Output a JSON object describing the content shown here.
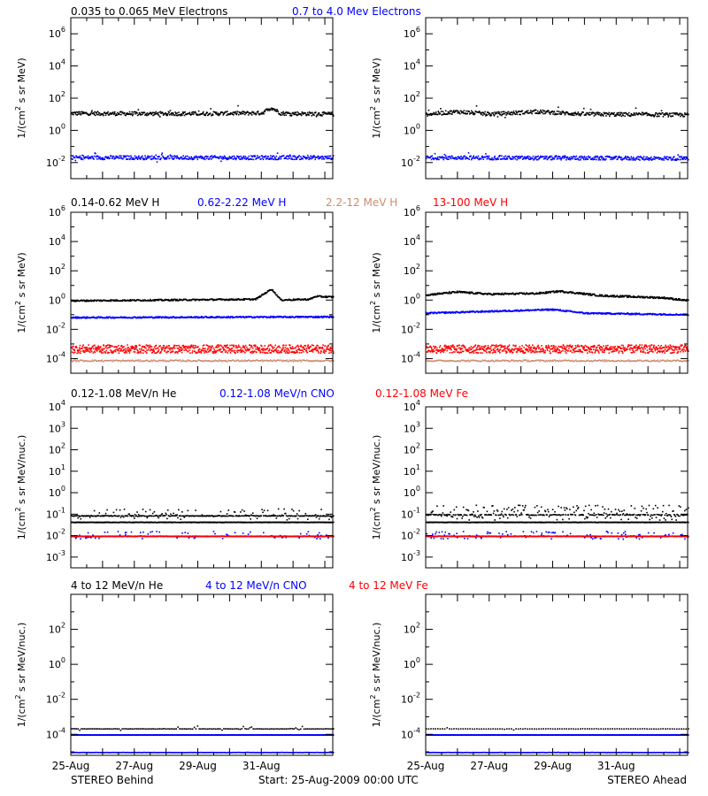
{
  "footer": {
    "left_label": "STEREO Behind",
    "center_label": "Start: 25-Aug-2009 00:00 UTC",
    "right_label": "STEREO Ahead"
  },
  "x_ticks": [
    "25-Aug",
    "27-Aug",
    "29-Aug",
    "31-Aug"
  ],
  "chart_data": [
    {
      "id": "electrons",
      "type": "scatter",
      "header": [
        {
          "text": "0.035 to 0.065 MeV Electrons",
          "color": "#000000"
        },
        {
          "text": "0.7 to 4.0 Mev Electrons",
          "color": "#0000ff"
        }
      ],
      "ylabel_main": "1/(cm",
      "ylabel_sup": "2",
      "ylabel_rest": " s sr MeV)",
      "y_log_range": [
        -3,
        7
      ],
      "y_ticks": [
        {
          "base": "10",
          "exp": "-2",
          "v": -2
        },
        {
          "base": "10",
          "exp": "0",
          "v": 0
        },
        {
          "base": "10",
          "exp": "2",
          "v": 2
        },
        {
          "base": "10",
          "exp": "4",
          "v": 4
        },
        {
          "base": "10",
          "exp": "6",
          "v": 6
        }
      ],
      "x_range_days": [
        0,
        8.25
      ],
      "panels": {
        "behind": [
          {
            "color": "#000000",
            "base": [
              [
                0,
                1.1
              ],
              [
                2,
                1.08
              ],
              [
                4,
                1.08
              ],
              [
                6,
                1.12
              ],
              [
                6.3,
                1.45
              ],
              [
                6.6,
                1.1
              ],
              [
                8.25,
                1.05
              ]
            ],
            "spread": 0.12,
            "density": 1.0,
            "outliers": 0.03
          },
          {
            "color": "#0000ff",
            "base": [
              [
                0,
                -1.65
              ],
              [
                8.25,
                -1.65
              ]
            ],
            "spread": 0.12,
            "density": 1.0,
            "outliers": 0.04
          }
        ],
        "ahead": [
          {
            "color": "#000000",
            "base": [
              [
                0,
                1.05
              ],
              [
                1,
                1.2
              ],
              [
                2,
                1.05
              ],
              [
                3.5,
                1.2
              ],
              [
                5,
                1.05
              ],
              [
                8.25,
                1.0
              ]
            ],
            "spread": 0.12,
            "density": 1.0,
            "outliers": 0.03
          },
          {
            "color": "#0000ff",
            "base": [
              [
                0,
                -1.65
              ],
              [
                8.25,
                -1.7
              ]
            ],
            "spread": 0.12,
            "density": 1.0,
            "outliers": 0.05
          }
        ]
      }
    },
    {
      "id": "protons",
      "type": "scatter",
      "header": [
        {
          "text": "0.14-0.62 MeV H",
          "color": "#000000"
        },
        {
          "text": "0.62-2.22 MeV H",
          "color": "#0000ff"
        },
        {
          "text": "2.2-12 MeV H",
          "color": "#cd8c6e"
        },
        {
          "text": "13-100 MeV H",
          "color": "#ff0000"
        }
      ],
      "ylabel_main": "1/(cm",
      "ylabel_sup": "2",
      "ylabel_rest": " s sr MeV)",
      "y_log_range": [
        -5,
        6
      ],
      "y_ticks": [
        {
          "base": "10",
          "exp": "-4",
          "v": -4
        },
        {
          "base": "10",
          "exp": "-2",
          "v": -2
        },
        {
          "base": "10",
          "exp": "0",
          "v": 0
        },
        {
          "base": "10",
          "exp": "2",
          "v": 2
        },
        {
          "base": "10",
          "exp": "4",
          "v": 4
        },
        {
          "base": "10",
          "exp": "6",
          "v": 6
        }
      ],
      "x_range_days": [
        0,
        8.25
      ],
      "panels": {
        "behind": [
          {
            "color": "#000000",
            "base": [
              [
                0,
                0
              ],
              [
                3,
                0.05
              ],
              [
                5.8,
                0.1
              ],
              [
                6.3,
                0.8
              ],
              [
                6.6,
                0.05
              ],
              [
                7.5,
                0.1
              ],
              [
                7.7,
                0.3
              ],
              [
                8.25,
                0.25
              ]
            ],
            "spread": 0.05,
            "density": 1.0,
            "outliers": 0
          },
          {
            "color": "#0000ff",
            "base": [
              [
                0,
                -1.15
              ],
              [
                8.25,
                -1.1
              ]
            ],
            "spread": 0.05,
            "density": 1.0,
            "outliers": 0
          },
          {
            "color": "#cd8c6e",
            "base": [
              [
                0,
                -4.1
              ],
              [
                8.25,
                -4.1
              ]
            ],
            "spread": 0.05,
            "density": 0.6,
            "outliers": 0
          },
          {
            "color": "#ff0000",
            "base": [
              [
                0,
                -3.3
              ],
              [
                8.25,
                -3.3
              ]
            ],
            "spread": 0.28,
            "density": 1.6,
            "outliers": 0
          }
        ],
        "ahead": [
          {
            "color": "#000000",
            "base": [
              [
                0,
                0.4
              ],
              [
                1,
                0.6
              ],
              [
                2,
                0.45
              ],
              [
                3.5,
                0.5
              ],
              [
                4.2,
                0.65
              ],
              [
                5.5,
                0.35
              ],
              [
                7.5,
                0.2
              ],
              [
                8.25,
                0.0
              ]
            ],
            "spread": 0.06,
            "density": 1.0,
            "outliers": 0
          },
          {
            "color": "#0000ff",
            "base": [
              [
                0,
                -0.85
              ],
              [
                4,
                -0.6
              ],
              [
                5,
                -0.85
              ],
              [
                8.25,
                -0.95
              ]
            ],
            "spread": 0.05,
            "density": 1.0,
            "outliers": 0
          },
          {
            "color": "#cd8c6e",
            "base": [
              [
                0,
                -4.1
              ],
              [
                8.25,
                -4.1
              ]
            ],
            "spread": 0.05,
            "density": 0.6,
            "outliers": 0
          },
          {
            "color": "#ff0000",
            "base": [
              [
                0,
                -3.3
              ],
              [
                8.25,
                -3.3
              ]
            ],
            "spread": 0.28,
            "density": 1.6,
            "outliers": 0
          }
        ]
      }
    },
    {
      "id": "heavy_low",
      "type": "scatter",
      "header": [
        {
          "text": "0.12-1.08 MeV/n He",
          "color": "#000000"
        },
        {
          "text": "0.12-1.08 MeV/n CNO",
          "color": "#0000ff"
        },
        {
          "text": "0.12-1.08 MeV Fe",
          "color": "#ff0000"
        }
      ],
      "ylabel_main": "1/(cm",
      "ylabel_sup": "2",
      "ylabel_rest": " s sr MeV/nuc.)",
      "y_log_range": [
        -3.5,
        4
      ],
      "y_ticks": [
        {
          "base": "10",
          "exp": "-3",
          "v": -3
        },
        {
          "base": "10",
          "exp": "-2",
          "v": -2
        },
        {
          "base": "10",
          "exp": "-1",
          "v": -1
        },
        {
          "base": "10",
          "exp": "0",
          "v": 0
        },
        {
          "base": "10",
          "exp": "1",
          "v": 1
        },
        {
          "base": "10",
          "exp": "2",
          "v": 2
        },
        {
          "base": "10",
          "exp": "3",
          "v": 3
        },
        {
          "base": "10",
          "exp": "4",
          "v": 4
        }
      ],
      "x_range_days": [
        0,
        8.25
      ],
      "panels": {
        "behind": [
          {
            "color": "#000000",
            "base": [
              [
                0,
                -1.05
              ],
              [
                8.25,
                -1.05
              ]
            ],
            "spread": 0.015,
            "density": 0.8,
            "outliers": 0.25,
            "outlierSpread": 0.5
          },
          {
            "color": "#000000",
            "base": [
              [
                0,
                -1.35
              ],
              [
                8.25,
                -1.35
              ]
            ],
            "spread": 0.01,
            "density": 1.4,
            "outliers": 0
          },
          {
            "color": "#0000ff",
            "base": [
              [
                0,
                -2.0
              ],
              [
                8.25,
                -2.0
              ]
            ],
            "spread": 0.01,
            "density": 1.2,
            "outliers": 0.15,
            "outlierSpread": 0.35
          },
          {
            "color": "#ff0000",
            "base": [
              [
                0,
                -2.0
              ],
              [
                8.25,
                -2.0
              ]
            ],
            "spread": 0.01,
            "density": 0.5,
            "outliers": 0
          }
        ],
        "ahead": [
          {
            "color": "#000000",
            "base": [
              [
                0,
                -1.0
              ],
              [
                8.25,
                -1.0
              ]
            ],
            "spread": 0.02,
            "density": 0.8,
            "outliers": 0.45,
            "outlierSpread": 0.7
          },
          {
            "color": "#000000",
            "base": [
              [
                0,
                -1.35
              ],
              [
                8.25,
                -1.35
              ]
            ],
            "spread": 0.01,
            "density": 1.4,
            "outliers": 0
          },
          {
            "color": "#0000ff",
            "base": [
              [
                0,
                -2.0
              ],
              [
                8.25,
                -2.0
              ]
            ],
            "spread": 0.01,
            "density": 1.2,
            "outliers": 0.15,
            "outlierSpread": 0.35
          },
          {
            "color": "#ff0000",
            "base": [
              [
                0,
                -2.0
              ],
              [
                8.25,
                -2.0
              ]
            ],
            "spread": 0.01,
            "density": 0.5,
            "outliers": 0
          }
        ]
      }
    },
    {
      "id": "heavy_high",
      "type": "scatter",
      "header": [
        {
          "text": "4 to 12 MeV/n He",
          "color": "#000000"
        },
        {
          "text": "4 to 12 MeV/n CNO",
          "color": "#0000ff"
        },
        {
          "text": "4 to 12 MeV Fe",
          "color": "#ff0000"
        }
      ],
      "ylabel_main": "1/(cm",
      "ylabel_sup": "2",
      "ylabel_rest": " s sr MeV/nuc.)",
      "y_log_range": [
        -5.2,
        4
      ],
      "y_ticks": [
        {
          "base": "10",
          "exp": "-4",
          "v": -4
        },
        {
          "base": "10",
          "exp": "-2",
          "v": -2
        },
        {
          "base": "10",
          "exp": "0",
          "v": 0
        },
        {
          "base": "10",
          "exp": "2",
          "v": 2
        }
      ],
      "x_range_days": [
        0,
        8.25
      ],
      "panels": {
        "behind": [
          {
            "color": "#000000",
            "base": [
              [
                0,
                -3.65
              ],
              [
                8.25,
                -3.65
              ]
            ],
            "spread": 0.01,
            "density": 0.35,
            "outliers": 0.1,
            "outlierSpread": 0.25
          },
          {
            "color": "#0000ff",
            "base": [
              [
                0,
                -4.0
              ],
              [
                8.25,
                -4.0
              ]
            ],
            "spread": 0.005,
            "density": 1.6,
            "outliers": 0
          },
          {
            "color": "#0000ff",
            "base": [
              [
                0,
                -5.0
              ],
              [
                8.25,
                -5.0
              ]
            ],
            "spread": 0.01,
            "density": 0.5,
            "outliers": 0
          }
        ],
        "ahead": [
          {
            "color": "#000000",
            "base": [
              [
                0,
                -3.65
              ],
              [
                8.25,
                -3.65
              ]
            ],
            "spread": 0.01,
            "density": 0.25,
            "outliers": 0.05,
            "outlierSpread": 0.25
          },
          {
            "color": "#0000ff",
            "base": [
              [
                0,
                -4.0
              ],
              [
                8.25,
                -4.0
              ]
            ],
            "spread": 0.005,
            "density": 1.6,
            "outliers": 0
          },
          {
            "color": "#0000ff",
            "base": [
              [
                0,
                -5.0
              ],
              [
                8.25,
                -5.0
              ]
            ],
            "spread": 0.01,
            "density": 0.5,
            "outliers": 0
          }
        ]
      }
    }
  ]
}
